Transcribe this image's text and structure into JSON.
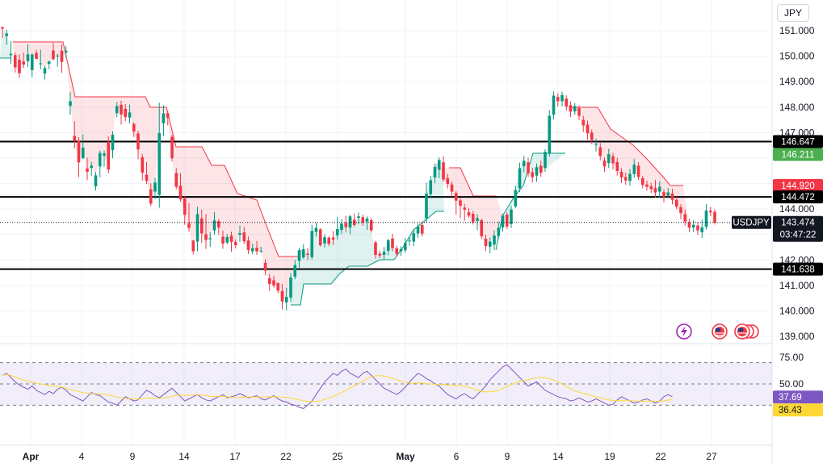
{
  "chart_data": {
    "type": "candlestick",
    "symbol": "USDJPY",
    "currency": "JPY",
    "countdown": "03:47:22",
    "last_price": "143.474",
    "y_ticks": [
      "151.000",
      "150.000",
      "149.000",
      "148.000",
      "147.000",
      "144.000",
      "142.000",
      "141.000",
      "140.000",
      "139.000"
    ],
    "x_ticks": [
      {
        "label": "Apr",
        "bold": true
      },
      {
        "label": "4",
        "bold": false
      },
      {
        "label": "9",
        "bold": false
      },
      {
        "label": "14",
        "bold": false
      },
      {
        "label": "17",
        "bold": false
      },
      {
        "label": "22",
        "bold": false
      },
      {
        "label": "25",
        "bold": false
      },
      {
        "label": "May",
        "bold": true
      },
      {
        "label": "6",
        "bold": false
      },
      {
        "label": "9",
        "bold": false
      },
      {
        "label": "14",
        "bold": false
      },
      {
        "label": "19",
        "bold": false
      },
      {
        "label": "22",
        "bold": false
      },
      {
        "label": "27",
        "bold": false
      }
    ],
    "horizontal_levels": [
      "146.647",
      "144.472",
      "141.638"
    ],
    "supertrend_up_label": "146.211",
    "supertrend_down_label": "144.920",
    "rsi": {
      "ticks": [
        "75.00",
        "50.00"
      ],
      "value": "37.69",
      "ma_value": "36.43",
      "series": [
        58,
        60,
        56,
        52,
        49,
        47,
        45,
        48,
        44,
        42,
        40,
        43,
        41,
        45,
        47,
        44,
        40,
        38,
        36,
        34,
        38,
        42,
        40,
        39,
        36,
        33,
        32,
        30,
        34,
        38,
        36,
        34,
        35,
        40,
        44,
        42,
        39,
        37,
        40,
        43,
        46,
        42,
        38,
        34,
        36,
        38,
        40,
        37,
        35,
        34,
        36,
        38,
        40,
        37,
        38,
        39,
        41,
        39,
        37,
        38,
        39,
        36,
        35,
        37,
        39,
        36,
        34,
        33,
        31,
        30,
        28,
        27,
        30,
        34,
        40,
        46,
        52,
        56,
        60,
        58,
        62,
        64,
        60,
        58,
        56,
        60,
        62,
        58,
        54,
        50,
        46,
        44,
        42,
        40,
        43,
        47,
        52,
        56,
        60,
        58,
        55,
        53,
        50,
        48,
        44,
        40,
        38,
        36,
        39,
        41,
        38,
        36,
        40,
        44,
        48,
        54,
        58,
        62,
        66,
        68,
        64,
        60,
        56,
        52,
        48,
        50,
        52,
        48,
        44,
        42,
        40,
        38,
        37,
        36,
        34,
        35,
        37,
        35,
        33,
        34,
        36,
        34,
        32,
        30,
        31,
        35,
        38,
        36,
        34,
        32,
        33,
        35,
        36,
        34,
        32,
        34,
        38,
        40,
        38
      ]
    },
    "candles": [
      [
        151.13,
        151.08,
        150.71,
        151.18
      ],
      [
        150.79,
        150.89,
        150.44,
        151.03
      ],
      [
        150.04,
        150.09,
        149.69,
        150.58
      ],
      [
        150.04,
        149.56,
        149.36,
        150.14
      ],
      [
        149.86,
        149.33,
        149.15,
        150.07
      ],
      [
        149.79,
        149.67,
        149.53,
        150.14
      ],
      [
        149.8,
        150.07,
        149.58,
        150.47
      ],
      [
        149.45,
        150.06,
        149.18,
        150.11
      ],
      [
        150.13,
        149.89,
        149.89,
        150.25
      ],
      [
        149.68,
        149.72,
        149.48,
        150.26
      ],
      [
        149.32,
        149.53,
        149.08,
        149.62
      ],
      [
        149.7,
        149.79,
        149.49,
        149.82
      ],
      [
        150.22,
        149.88,
        149.84,
        150.51
      ],
      [
        149.99,
        150.02,
        149.59,
        150.1
      ],
      [
        150.21,
        149.77,
        149.34,
        150.47
      ],
      [
        150.15,
        150.21,
        149.93,
        150.4
      ],
      [
        148.05,
        148.23,
        147.7,
        148.59
      ],
      [
        146.87,
        146.67,
        146.37,
        147.45
      ],
      [
        146.69,
        145.83,
        145.25,
        146.82
      ],
      [
        145.99,
        146.41,
        145.96,
        146.93
      ],
      [
        145.59,
        145.46,
        145.13,
        146.01
      ],
      [
        145.61,
        145.7,
        145.29,
        145.85
      ],
      [
        144.89,
        145.32,
        144.72,
        145.45
      ],
      [
        145.67,
        146.2,
        145.24,
        146.3
      ],
      [
        146.09,
        146.18,
        145.66,
        146.3
      ],
      [
        146.64,
        145.55,
        145.4,
        146.85
      ],
      [
        146.31,
        146.91,
        145.99,
        147.05
      ],
      [
        147.76,
        148.04,
        147.6,
        148.19
      ],
      [
        148.09,
        147.71,
        147.31,
        148.25
      ],
      [
        147.93,
        147.61,
        147.45,
        148.12
      ],
      [
        147.59,
        147.79,
        147.36,
        148.1
      ],
      [
        147.34,
        147.04,
        146.83,
        147.4
      ],
      [
        146.96,
        146.34,
        145.95,
        147.07
      ],
      [
        146.03,
        145.43,
        145.11,
        146.16
      ],
      [
        145.34,
        145.11,
        144.98,
        145.84
      ],
      [
        144.77,
        144.21,
        144.11,
        145.01
      ],
      [
        144.68,
        145.04,
        144.39,
        145.23
      ],
      [
        144.55,
        146.98,
        144.05,
        148.17
      ],
      [
        147.36,
        147.75,
        146.87,
        148.07
      ],
      [
        147.76,
        147.57,
        147.28,
        147.86
      ],
      [
        146.83,
        145.99,
        145.87,
        146.91
      ],
      [
        145.41,
        144.87,
        144.78,
        145.61
      ],
      [
        144.91,
        144.38,
        144.29,
        145.41
      ],
      [
        144.42,
        143.77,
        143.38,
        144.49
      ],
      [
        143.44,
        143.26,
        143.12,
        144.23
      ],
      [
        142.76,
        142.34,
        142.21,
        142.78
      ],
      [
        142.72,
        143.8,
        142.34,
        144.09
      ],
      [
        143.63,
        143.04,
        142.67,
        143.97
      ],
      [
        143.01,
        142.78,
        142.43,
        143.8
      ],
      [
        142.81,
        142.85,
        142.51,
        143.08
      ],
      [
        143.16,
        143.55,
        142.99,
        143.88
      ],
      [
        143.52,
        143.27,
        142.98,
        143.6
      ],
      [
        142.91,
        142.64,
        142.44,
        143.15
      ],
      [
        142.68,
        142.9,
        142.61,
        143.02
      ],
      [
        142.95,
        142.71,
        142.32,
        143.11
      ],
      [
        142.7,
        142.58,
        142.45,
        142.81
      ],
      [
        142.99,
        143.05,
        142.7,
        143.35
      ],
      [
        143.08,
        142.73,
        142.63,
        143.3
      ],
      [
        142.76,
        142.39,
        142.24,
        142.92
      ],
      [
        142.34,
        142.46,
        142.22,
        142.64
      ],
      [
        142.48,
        142.34,
        142.2,
        142.74
      ],
      [
        142.35,
        142.36,
        142.29,
        142.52
      ],
      [
        141.89,
        141.58,
        141.4,
        142.02
      ],
      [
        141.28,
        141.06,
        140.78,
        141.45
      ],
      [
        141.2,
        141.0,
        140.91,
        141.38
      ],
      [
        141.09,
        140.8,
        140.7,
        141.13
      ],
      [
        140.78,
        140.37,
        140.06,
        141.05
      ],
      [
        140.33,
        140.55,
        140.02,
        140.91
      ],
      [
        140.52,
        141.31,
        140.34,
        141.49
      ],
      [
        141.34,
        141.8,
        141.24,
        142.0
      ],
      [
        141.96,
        142.38,
        141.69,
        142.48
      ],
      [
        142.1,
        142.42,
        142.04,
        142.62
      ],
      [
        142.25,
        142.2,
        141.99,
        142.47
      ],
      [
        142.11,
        143.14,
        142.01,
        143.38
      ],
      [
        143.1,
        143.26,
        142.92,
        143.47
      ],
      [
        143.2,
        142.58,
        142.52,
        143.25
      ],
      [
        142.65,
        142.89,
        142.49,
        143.01
      ],
      [
        142.87,
        142.63,
        142.54,
        142.93
      ],
      [
        142.88,
        142.8,
        142.59,
        143.13
      ],
      [
        142.97,
        143.21,
        142.8,
        143.69
      ],
      [
        143.18,
        143.43,
        143.02,
        143.6
      ],
      [
        143.45,
        143.29,
        143.08,
        143.73
      ],
      [
        143.27,
        143.71,
        143.01,
        143.77
      ],
      [
        143.58,
        143.37,
        143.3,
        143.82
      ],
      [
        143.65,
        143.71,
        143.4,
        143.86
      ],
      [
        143.68,
        143.46,
        143.34,
        143.78
      ],
      [
        143.51,
        143.62,
        143.18,
        143.71
      ],
      [
        143.56,
        143.16,
        143.07,
        143.65
      ],
      [
        142.69,
        142.2,
        142.05,
        142.75
      ],
      [
        142.25,
        142.17,
        142.07,
        142.37
      ],
      [
        142.2,
        142.32,
        142.02,
        142.51
      ],
      [
        142.36,
        142.78,
        142.19,
        142.82
      ],
      [
        142.84,
        142.46,
        142.34,
        143.02
      ],
      [
        142.46,
        142.24,
        142.13,
        142.56
      ],
      [
        142.34,
        142.42,
        142.16,
        142.53
      ],
      [
        142.38,
        142.67,
        142.28,
        142.86
      ],
      [
        142.74,
        142.76,
        142.56,
        142.93
      ],
      [
        142.72,
        143.05,
        142.54,
        143.19
      ],
      [
        143.04,
        143.31,
        142.87,
        143.44
      ],
      [
        143.37,
        143.03,
        142.92,
        143.52
      ],
      [
        143.63,
        144.6,
        143.45,
        145.03
      ],
      [
        144.58,
        145.13,
        144.41,
        145.3
      ],
      [
        145.24,
        145.65,
        145.01,
        145.78
      ],
      [
        145.54,
        145.92,
        145.21,
        146.02
      ],
      [
        145.83,
        145.16,
        145.06,
        146.07
      ],
      [
        145.21,
        144.98,
        144.81,
        145.38
      ],
      [
        144.96,
        144.68,
        144.49,
        145.08
      ],
      [
        144.63,
        144.33,
        143.78,
        144.7
      ],
      [
        144.34,
        144.13,
        143.64,
        144.45
      ],
      [
        144.05,
        143.97,
        143.54,
        144.2
      ],
      [
        143.87,
        143.74,
        143.65,
        144.03
      ],
      [
        143.81,
        143.48,
        143.39,
        143.92
      ],
      [
        143.53,
        143.64,
        143.18,
        143.79
      ],
      [
        143.56,
        142.93,
        142.83,
        143.63
      ],
      [
        142.83,
        142.54,
        142.35,
        142.99
      ],
      [
        142.52,
        142.72,
        142.26,
        142.88
      ],
      [
        142.6,
        142.96,
        142.39,
        143.16
      ],
      [
        142.94,
        143.26,
        142.82,
        143.49
      ],
      [
        143.28,
        143.74,
        143.12,
        143.82
      ],
      [
        143.78,
        143.31,
        143.21,
        143.86
      ],
      [
        143.41,
        143.98,
        143.25,
        144.12
      ],
      [
        144.1,
        144.74,
        144.04,
        144.92
      ],
      [
        144.82,
        145.6,
        144.66,
        145.82
      ],
      [
        145.68,
        145.89,
        145.44,
        146.08
      ],
      [
        145.83,
        145.4,
        145.27,
        146.02
      ],
      [
        145.44,
        145.25,
        145.04,
        145.62
      ],
      [
        145.31,
        145.64,
        145.07,
        145.78
      ],
      [
        145.7,
        145.42,
        145.26,
        145.9
      ],
      [
        145.61,
        146.24,
        145.46,
        146.35
      ],
      [
        146.2,
        147.66,
        146.06,
        147.88
      ],
      [
        147.7,
        148.45,
        147.52,
        148.61
      ],
      [
        148.4,
        148.23,
        148.02,
        148.54
      ],
      [
        148.23,
        148.47,
        148.03,
        148.6
      ],
      [
        148.33,
        148.02,
        147.87,
        148.46
      ],
      [
        148.08,
        147.82,
        147.61,
        148.22
      ],
      [
        147.83,
        148.04,
        147.7,
        148.16
      ],
      [
        147.96,
        147.66,
        147.49,
        148.06
      ],
      [
        147.5,
        147.28,
        147.02,
        147.66
      ],
      [
        147.31,
        146.97,
        146.71,
        147.47
      ],
      [
        147.0,
        146.7,
        146.54,
        147.12
      ],
      [
        146.52,
        146.56,
        146.26,
        146.76
      ],
      [
        146.42,
        146.08,
        145.91,
        146.59
      ],
      [
        145.9,
        145.67,
        145.46,
        146.02
      ],
      [
        145.8,
        146.15,
        145.61,
        146.36
      ],
      [
        146.07,
        145.79,
        145.56,
        146.2
      ],
      [
        145.84,
        145.49,
        145.31,
        146.01
      ],
      [
        145.46,
        145.24,
        145.02,
        145.6
      ],
      [
        145.25,
        145.12,
        144.95,
        145.43
      ],
      [
        145.1,
        145.38,
        144.91,
        145.57
      ],
      [
        145.37,
        145.74,
        145.22,
        145.96
      ],
      [
        145.7,
        145.26,
        145.14,
        145.84
      ],
      [
        145.21,
        144.95,
        144.81,
        145.3
      ],
      [
        144.96,
        144.87,
        144.72,
        145.11
      ],
      [
        144.89,
        144.78,
        144.63,
        145.02
      ],
      [
        144.82,
        144.65,
        144.45,
        145.14
      ],
      [
        144.68,
        144.87,
        144.44,
        145.08
      ],
      [
        144.66,
        144.47,
        144.26,
        144.77
      ],
      [
        144.52,
        144.65,
        144.41,
        144.83
      ],
      [
        144.61,
        144.36,
        144.18,
        144.79
      ],
      [
        144.36,
        144.09,
        143.98,
        144.48
      ],
      [
        144.07,
        143.84,
        143.6,
        144.19
      ],
      [
        143.8,
        143.51,
        143.35,
        143.97
      ],
      [
        143.47,
        143.27,
        143.1,
        143.62
      ],
      [
        143.27,
        143.38,
        143.08,
        143.55
      ],
      [
        143.35,
        143.16,
        142.98,
        143.5
      ],
      [
        143.09,
        143.28,
        142.86,
        143.58
      ],
      [
        143.3,
        143.94,
        143.19,
        144.19
      ],
      [
        143.93,
        143.87,
        143.72,
        144.08
      ],
      [
        143.89,
        143.46,
        143.39,
        143.98
      ]
    ]
  }
}
